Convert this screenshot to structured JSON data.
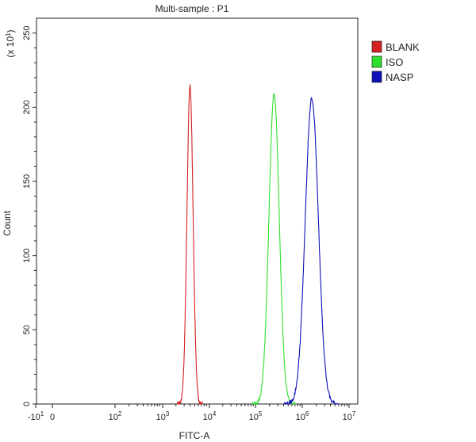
{
  "chart_data": {
    "type": "line",
    "title": "Multi-sample : P1",
    "xlabel": "FITC-A",
    "ylabel": "Count",
    "y_multiplier": "(x 10",
    "y_multiplier_exp": "1",
    "y_multiplier_close": ")",
    "x_scale": "log",
    "xlim": [
      -10,
      10000000
    ],
    "ylim": [
      0,
      260
    ],
    "x_ticks": [
      {
        "base": "-10",
        "exp": "1"
      },
      {
        "base": "0",
        "exp": ""
      },
      {
        "base": "10",
        "exp": "2"
      },
      {
        "base": "10",
        "exp": "3"
      },
      {
        "base": "10",
        "exp": "4"
      },
      {
        "base": "10",
        "exp": "5"
      },
      {
        "base": "10",
        "exp": "6"
      },
      {
        "base": "10",
        "exp": "7"
      }
    ],
    "y_ticks": [
      "0",
      "50",
      "100",
      "150",
      "200",
      "250"
    ],
    "y_tick_values": [
      0,
      50,
      100,
      150,
      200,
      250
    ],
    "grid": false,
    "legend_position": "top-right",
    "series": [
      {
        "name": "BLANK",
        "color": "#d42020",
        "peak_x": 4000,
        "peak_count": 214,
        "sigma_decades": 0.065
      },
      {
        "name": "ISO",
        "color": "#2ee02e",
        "peak_x": 250000,
        "peak_count": 209,
        "sigma_decades": 0.11
      },
      {
        "name": "NASP",
        "color": "#1010b8",
        "peak_x": 1600000,
        "peak_count": 206,
        "sigma_decades": 0.14
      }
    ]
  }
}
